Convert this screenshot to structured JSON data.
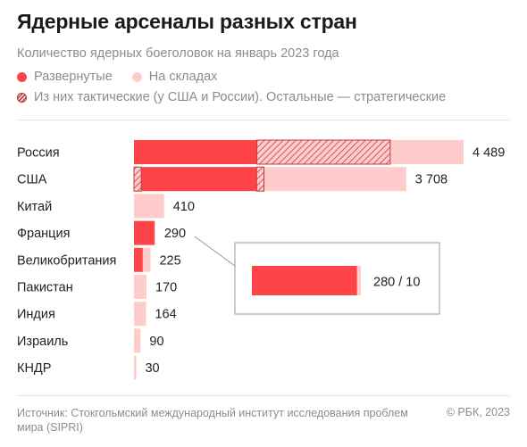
{
  "header": {
    "title": "Ядерные арсеналы разных стран",
    "subtitle": "Количество ядерных боеголовок на январь 2023 года"
  },
  "legend": {
    "deployed": "Развернутые",
    "stored": "На складах",
    "tactical": "Из них тактические (у США и России). Остальные — стратегические"
  },
  "footer": {
    "source": "Источник: Стокгольмский международный институт исследования проблем мира (SIPRI)",
    "copyright": "© РБК, 2023"
  },
  "colors": {
    "deployed": "#ff4447",
    "stored": "#ffcccc",
    "tactical_hatch": "#c0393c"
  },
  "chart_data": {
    "type": "bar",
    "orientation": "horizontal",
    "stacked": true,
    "categories": [
      "Россия",
      "США",
      "Китай",
      "Франция",
      "Великобритания",
      "Пакистан",
      "Индия",
      "Израиль",
      "КНДР"
    ],
    "series": [
      {
        "name": "Развернутые",
        "values": [
          1674,
          1770,
          0,
          280,
          120,
          0,
          0,
          0,
          0
        ]
      },
      {
        "name": "На складах",
        "values": [
          2815,
          1938,
          410,
          10,
          105,
          170,
          164,
          90,
          30
        ]
      }
    ],
    "tactical": [
      1816,
      200,
      0,
      0,
      0,
      0,
      0,
      0,
      0
    ],
    "totals": [
      4489,
      3708,
      410,
      290,
      225,
      170,
      164,
      90,
      30
    ],
    "value_labels": [
      "4 489",
      "3 708",
      "410",
      "290",
      "225",
      "170",
      "164",
      "90",
      "30"
    ],
    "callout": {
      "category": "Франция",
      "label": "280 / 10",
      "deployed": 280,
      "stored": 10
    },
    "xlim": [
      0,
      4489
    ]
  }
}
